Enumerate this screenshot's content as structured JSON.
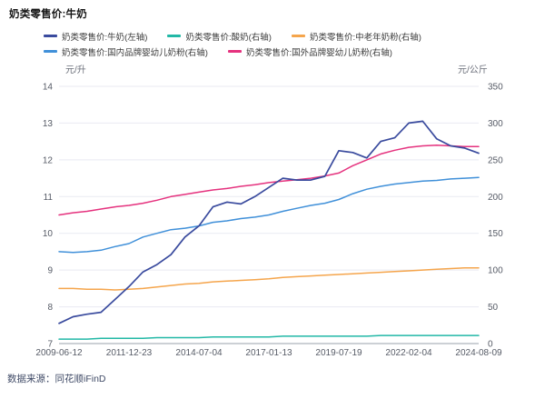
{
  "page": {
    "title": "奶类零售价:牛奶",
    "source": "数据来源：同花顺iFinD"
  },
  "axes_units": {
    "left": "元/升",
    "right": "元/公斤"
  },
  "colors": {
    "milk": "#3a4b9e",
    "yogurt": "#22b8a6",
    "senior_powder": "#f5a54c",
    "domestic_infant": "#4090d9",
    "foreign_infant": "#e5327e",
    "grid": "#e9eaf2",
    "axis_line": "#9aa0ab",
    "tick_text": "#55596399"
  },
  "legend": {
    "rows": [
      [
        {
          "label": "奶类零售价:牛奶(左轴)",
          "color": "#3a4b9e"
        },
        {
          "label": "奶类零售价:酸奶(右轴)",
          "color": "#22b8a6"
        },
        {
          "label": "奶类零售价:中老年奶粉(右轴)",
          "color": "#f5a54c"
        }
      ],
      [
        {
          "label": "奶类零售价:国内品牌婴幼儿奶粉(右轴)",
          "color": "#4090d9"
        },
        {
          "label": "奶类零售价:国外品牌婴幼儿奶粉(右轴)",
          "color": "#e5327e"
        }
      ]
    ]
  },
  "chart_data": {
    "type": "line",
    "title": "奶类零售价:牛奶",
    "legend_position": "top",
    "grid": true,
    "x_ticks": [
      "2009-06-12",
      "2011-12-23",
      "2014-07-04",
      "2017-01-13",
      "2019-07-19",
      "2022-02-04",
      "2024-08-09"
    ],
    "left_axis": {
      "unit": "元/升",
      "min": 7,
      "max": 14,
      "ticks": [
        14,
        13,
        12,
        11,
        10,
        9,
        8,
        7
      ]
    },
    "right_axis": {
      "unit": "元/公斤",
      "min": 0,
      "max": 350,
      "ticks": [
        350,
        300,
        250,
        200,
        150,
        100,
        50,
        0
      ]
    },
    "series": [
      {
        "name": "奶类零售价:酸奶(右轴)",
        "axis": "right",
        "color": "#22b8a6",
        "values": [
          6,
          6,
          6,
          7,
          7,
          7,
          7,
          8,
          8,
          8,
          8,
          9,
          9,
          9,
          9,
          9,
          10,
          10,
          10,
          10,
          10,
          10,
          10,
          11,
          11,
          11,
          11,
          11,
          11,
          11,
          11
        ]
      },
      {
        "name": "奶类零售价:中老年奶粉(右轴)",
        "axis": "right",
        "color": "#f5a54c",
        "values": [
          75,
          75,
          74,
          74,
          73,
          74,
          75,
          77,
          79,
          81,
          82,
          84,
          85,
          86,
          87,
          88,
          90,
          91,
          92,
          93,
          94,
          95,
          96,
          97,
          98,
          99,
          100,
          101,
          102,
          103,
          103
        ]
      },
      {
        "name": "奶类零售价:国内品牌婴幼儿奶粉(右轴)",
        "axis": "right",
        "color": "#4090d9",
        "values": [
          125,
          124,
          125,
          127,
          132,
          136,
          145,
          150,
          155,
          157,
          160,
          165,
          167,
          170,
          172,
          175,
          180,
          184,
          188,
          191,
          196,
          204,
          210,
          214,
          217,
          219,
          221,
          222,
          224,
          225,
          226
        ]
      },
      {
        "name": "奶类零售价:国外品牌婴幼儿奶粉(右轴)",
        "axis": "right",
        "color": "#e5327e",
        "values": [
          175,
          178,
          180,
          183,
          186,
          188,
          191,
          195,
          200,
          203,
          206,
          209,
          211,
          214,
          216,
          219,
          221,
          223,
          225,
          228,
          232,
          242,
          250,
          258,
          263,
          267,
          269,
          270,
          269,
          268,
          268
        ]
      },
      {
        "name": "奶类零售价:牛奶(左轴)",
        "axis": "left",
        "color": "#3a4b9e",
        "values": [
          7.55,
          7.73,
          7.8,
          7.85,
          8.2,
          8.55,
          8.95,
          9.15,
          9.42,
          9.9,
          10.2,
          10.72,
          10.85,
          10.8,
          11.0,
          11.25,
          11.5,
          11.45,
          11.45,
          11.55,
          12.25,
          12.2,
          12.05,
          12.5,
          12.6,
          13.0,
          13.05,
          12.57,
          12.38,
          12.32,
          12.18
        ]
      }
    ]
  }
}
